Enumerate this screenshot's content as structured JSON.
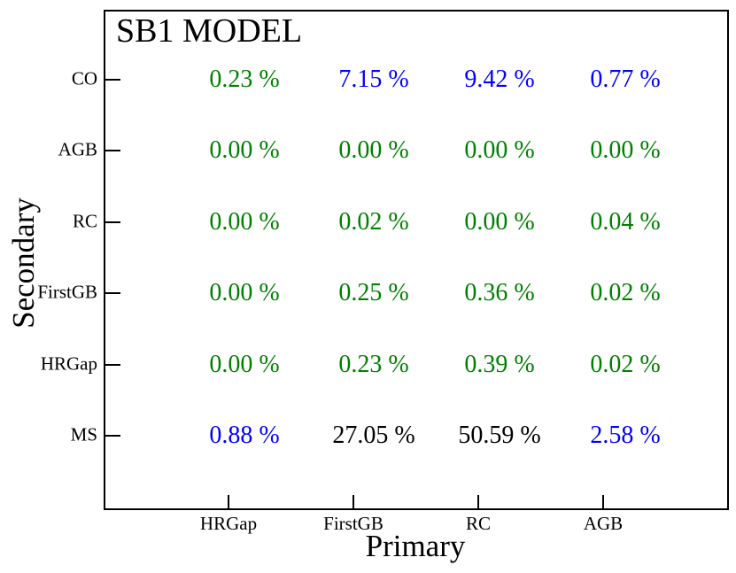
{
  "chart_data": {
    "type": "heatmap",
    "title": "SB1 MODEL",
    "xlabel": "Primary",
    "ylabel": "Secondary",
    "x_categories": [
      "HRGap",
      "FirstGB",
      "RC",
      "AGB"
    ],
    "y_categories": [
      "CO",
      "AGB",
      "RC",
      "FirstGB",
      "HRGap",
      "MS"
    ],
    "values_percent": [
      [
        0.23,
        7.15,
        9.42,
        0.77
      ],
      [
        0.0,
        0.0,
        0.0,
        0.0
      ],
      [
        0.0,
        0.02,
        0.0,
        0.04
      ],
      [
        0.0,
        0.25,
        0.36,
        0.02
      ],
      [
        0.0,
        0.23,
        0.39,
        0.02
      ],
      [
        0.88,
        27.05,
        50.59,
        2.58
      ]
    ],
    "legend_position": "none",
    "grid": false,
    "tick_direction": "in",
    "rows": [
      {
        "label": "CO",
        "cells": [
          {
            "text": "0.23 %",
            "color": "#008000"
          },
          {
            "text": "7.15 %",
            "color": "#0000ff"
          },
          {
            "text": "9.42 %",
            "color": "#0000ff"
          },
          {
            "text": "0.77 %",
            "color": "#0000ff"
          }
        ]
      },
      {
        "label": "AGB",
        "cells": [
          {
            "text": "0.00 %",
            "color": "#008000"
          },
          {
            "text": "0.00 %",
            "color": "#008000"
          },
          {
            "text": "0.00 %",
            "color": "#008000"
          },
          {
            "text": "0.00 %",
            "color": "#008000"
          }
        ]
      },
      {
        "label": "RC",
        "cells": [
          {
            "text": "0.00 %",
            "color": "#008000"
          },
          {
            "text": "0.02 %",
            "color": "#008000"
          },
          {
            "text": "0.00 %",
            "color": "#008000"
          },
          {
            "text": "0.04 %",
            "color": "#008000"
          }
        ]
      },
      {
        "label": "FirstGB",
        "cells": [
          {
            "text": "0.00 %",
            "color": "#008000"
          },
          {
            "text": "0.25 %",
            "color": "#008000"
          },
          {
            "text": "0.36 %",
            "color": "#008000"
          },
          {
            "text": "0.02 %",
            "color": "#008000"
          }
        ]
      },
      {
        "label": "HRGap",
        "cells": [
          {
            "text": "0.00 %",
            "color": "#008000"
          },
          {
            "text": "0.23 %",
            "color": "#008000"
          },
          {
            "text": "0.39 %",
            "color": "#008000"
          },
          {
            "text": "0.02 %",
            "color": "#008000"
          }
        ]
      },
      {
        "label": "MS",
        "cells": [
          {
            "text": "0.88 %",
            "color": "#0000ff"
          },
          {
            "text": "27.05 %",
            "color": "#000000"
          },
          {
            "text": "50.59 %",
            "color": "#000000"
          },
          {
            "text": "2.58 %",
            "color": "#0000ff"
          }
        ]
      }
    ],
    "colors": {
      "low_value": "#008000",
      "mid_value": "#0000ff",
      "high_value": "#000000",
      "axis": "#000000",
      "background": "#ffffff"
    }
  }
}
